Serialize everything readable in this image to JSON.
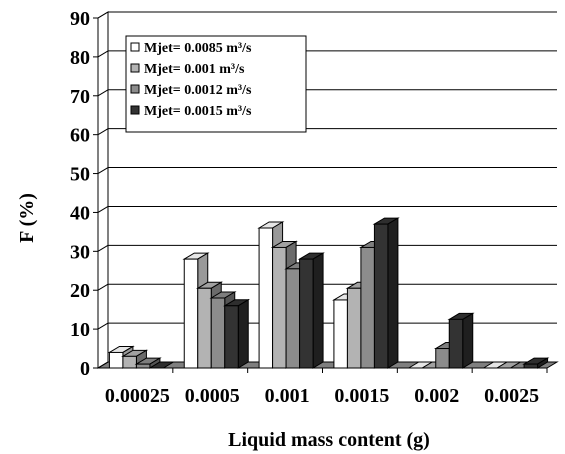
{
  "chart_data": {
    "type": "bar",
    "style": "3d-clustered",
    "title": "",
    "xlabel": "Liquid mass content (g)",
    "ylabel": "F (%)",
    "ylim": [
      0,
      90
    ],
    "yticks": [
      0,
      10,
      20,
      30,
      40,
      50,
      60,
      70,
      80,
      90
    ],
    "grid": true,
    "legend_position": "top-left",
    "categories": [
      "0.00025",
      "0.0005",
      "0.001",
      "0.0015",
      "0.002",
      "0.0025"
    ],
    "series": [
      {
        "name": "Mjet= 0.0085  m³/s",
        "values": [
          4,
          28,
          36,
          17.5,
          0,
          0
        ],
        "color": "#ffffff"
      },
      {
        "name": "Mjet= 0.001  m³/s",
        "values": [
          3,
          20.5,
          31,
          20.5,
          0,
          0
        ],
        "color": "#b3b3b3"
      },
      {
        "name": "Mjet= 0.0012  m³/s",
        "values": [
          1,
          18,
          25.5,
          31,
          5,
          0
        ],
        "color": "#8c8c8c"
      },
      {
        "name": "Mjet= 0.0015  m³/s",
        "values": [
          0,
          16,
          28,
          37,
          12.5,
          1
        ],
        "color": "#333333"
      }
    ]
  }
}
